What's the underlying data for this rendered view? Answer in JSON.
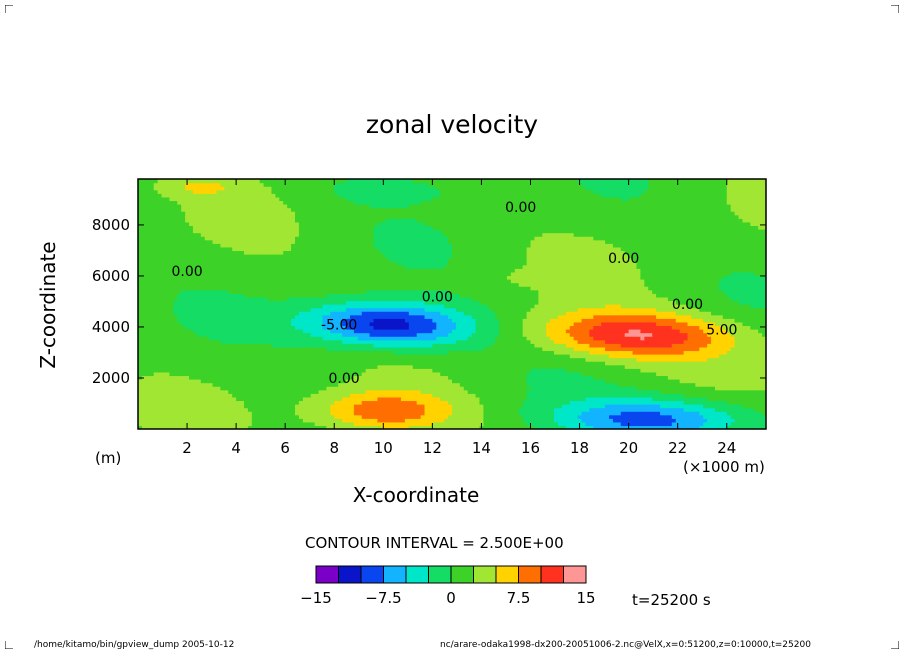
{
  "chart_data": {
    "type": "heatmap",
    "title": "zonal velocity",
    "xlabel": "X-coordinate",
    "ylabel": "Z-coordinate",
    "x_unit": "(×1000 m)",
    "y_unit": "(m)",
    "xlim": [
      0,
      25.6
    ],
    "ylim": [
      0,
      9800
    ],
    "x_ticks": [
      2,
      4,
      6,
      8,
      10,
      12,
      14,
      16,
      18,
      20,
      22,
      24
    ],
    "y_ticks": [
      2000,
      4000,
      6000,
      8000
    ],
    "y_tick_labels": [
      "2000",
      "4000",
      "6000",
      "8000"
    ],
    "contour_interval_label": "CONTOUR INTERVAL = 2.500E+00",
    "contour_labels": [
      {
        "text": "0.00",
        "x": 15.6,
        "z": 8700
      },
      {
        "text": "0.00",
        "x": 2.0,
        "z": 6200
      },
      {
        "text": "0.00",
        "x": 19.8,
        "z": 6700
      },
      {
        "text": "0.00",
        "x": 12.2,
        "z": 5200
      },
      {
        "text": "0.00",
        "x": 22.4,
        "z": 4900
      },
      {
        "text": "5.00",
        "x": 23.8,
        "z": 3900
      },
      {
        "text": "-5.00",
        "x": 8.2,
        "z": 4100
      },
      {
        "text": "0.00",
        "x": 8.4,
        "z": 2000
      }
    ],
    "features": [
      {
        "name": "negative core",
        "x": 10.2,
        "z": 4100,
        "amp": -14
      },
      {
        "name": "positive core",
        "x": 20.2,
        "z": 3700,
        "amp": 11
      },
      {
        "name": "positive lower",
        "x": 10.0,
        "z": 700,
        "amp": 9
      },
      {
        "name": "negative lower",
        "x": 21.0,
        "z": 400,
        "amp": -10
      }
    ],
    "colorbar": {
      "levels": [
        -15,
        -12.5,
        -10,
        -7.5,
        -5,
        -2.5,
        0,
        2.5,
        5,
        7.5,
        10,
        12.5,
        15
      ],
      "tick_labels": [
        "−15",
        "−7.5",
        "0",
        "7.5",
        "15"
      ],
      "tick_values": [
        -15,
        -7.5,
        0,
        7.5,
        15
      ],
      "colors": [
        "#7a00c8",
        "#0a14c8",
        "#0a46f0",
        "#12b4ff",
        "#00e6c8",
        "#14dc64",
        "#3cd228",
        "#a0e632",
        "#ffd200",
        "#ff6e00",
        "#ff3220",
        "#ff9696"
      ]
    }
  },
  "time_label": "t=25200 s",
  "footer": {
    "left": "/home/kitamo/bin/gpview_dump  2005-10-12",
    "right": "nc/arare-odaka1998-dx200-20051006-2.nc@VelX,x=0:51200,z=0:10000,t=25200"
  }
}
